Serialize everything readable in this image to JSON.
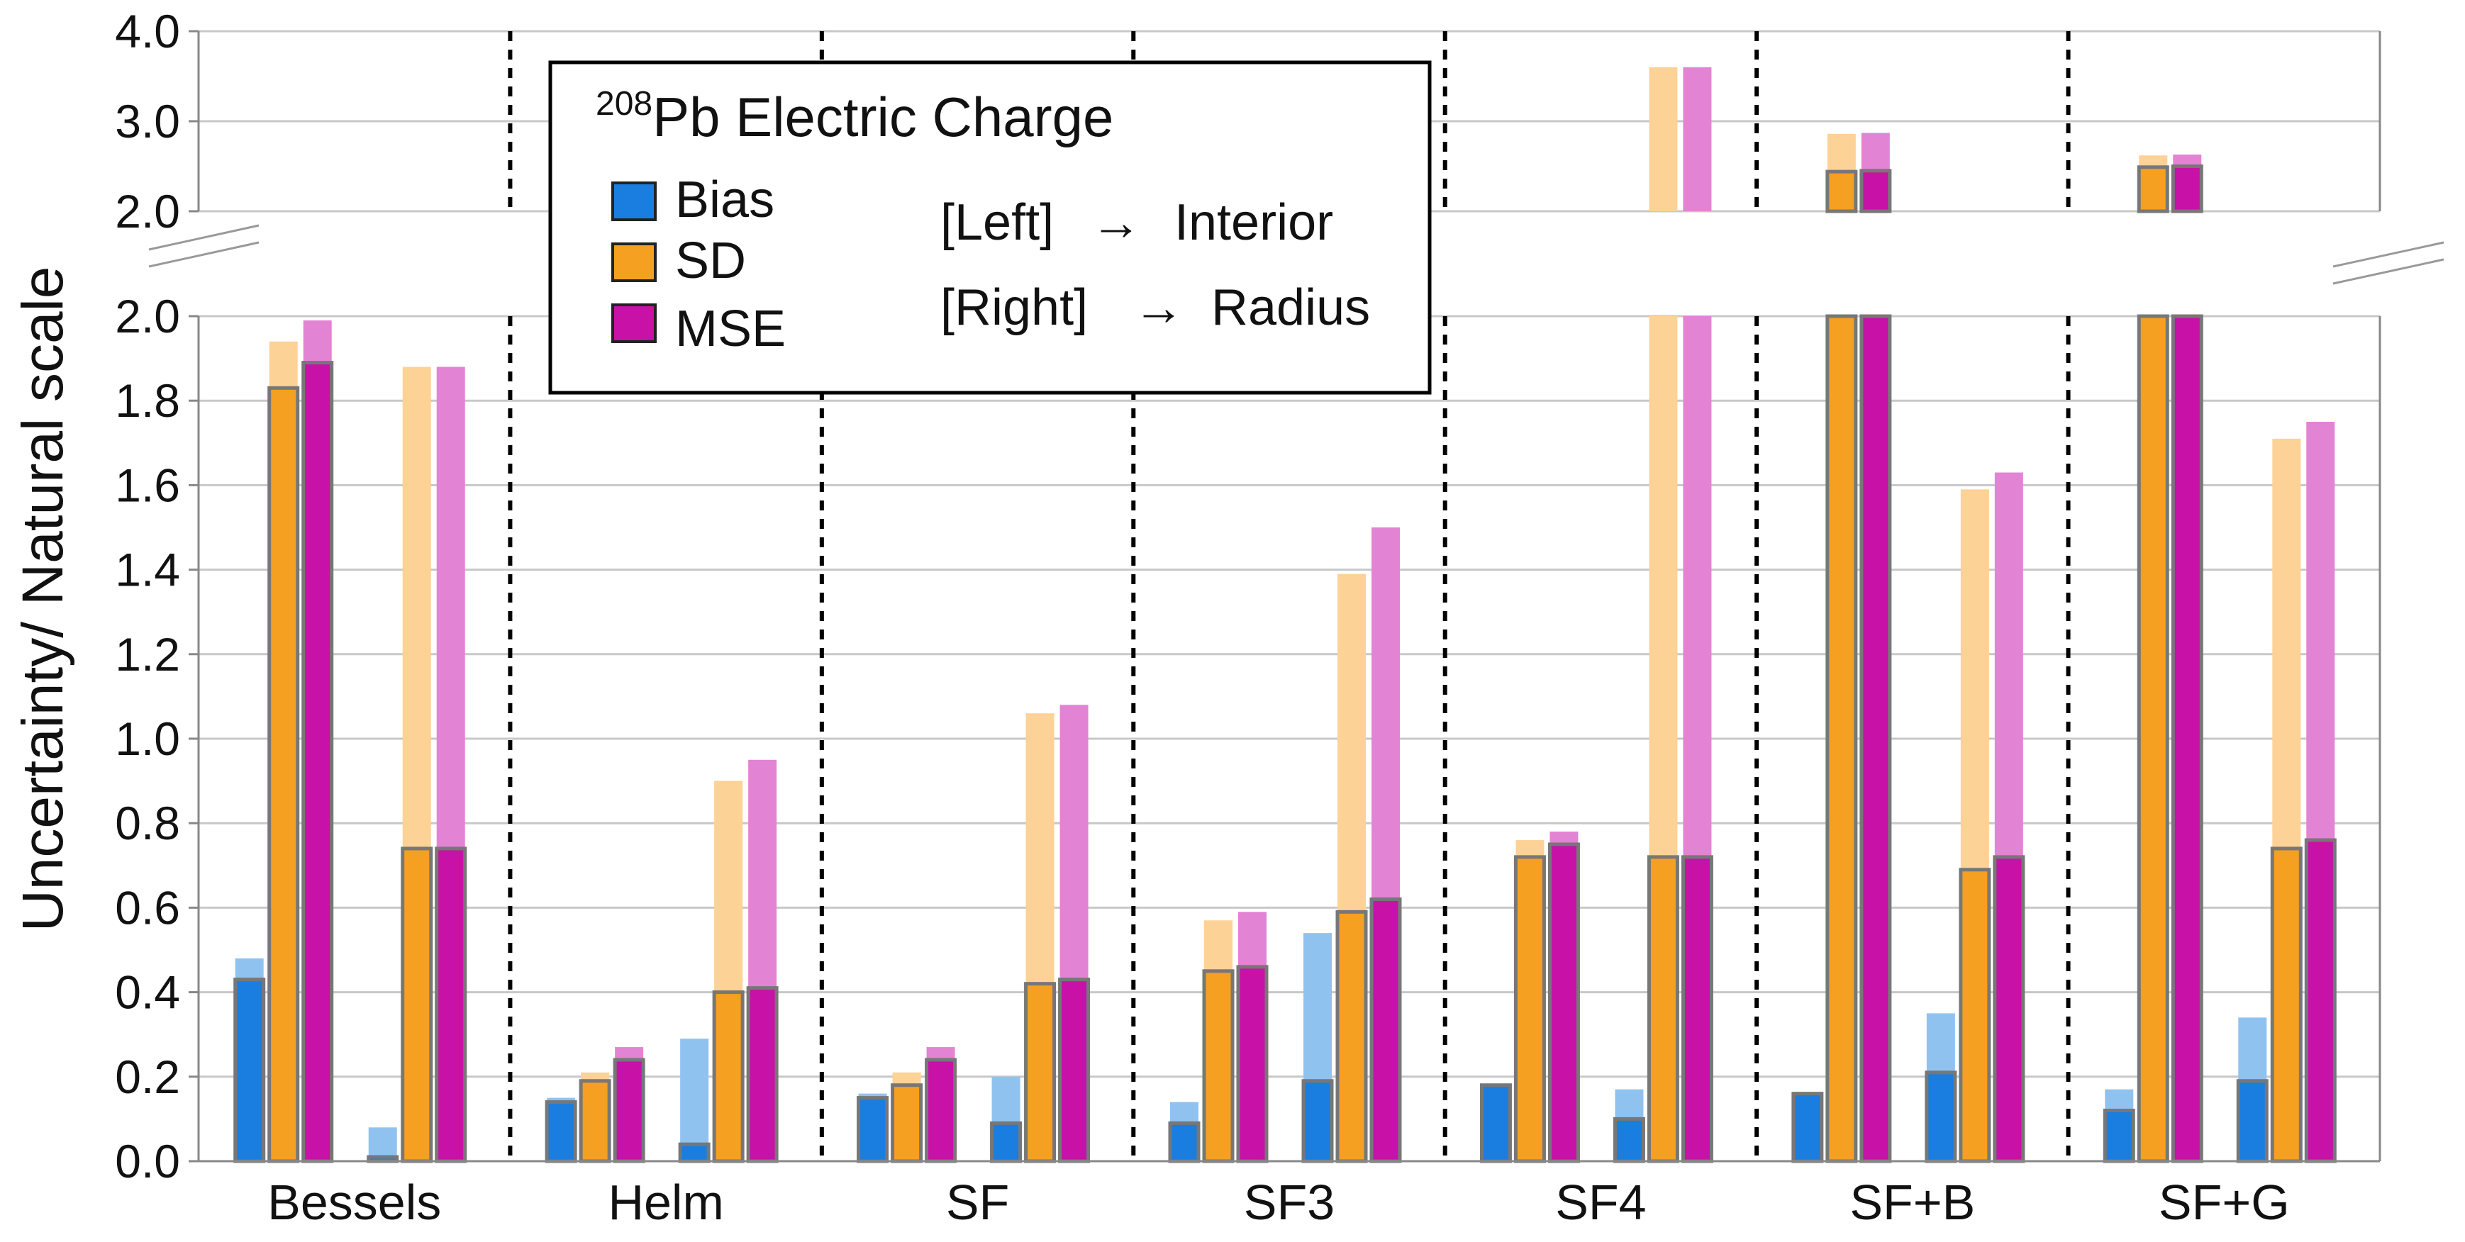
{
  "chart_data": {
    "type": "bar",
    "title_sup": "208",
    "title_main": "Pb Electric Charge",
    "ylabel": "Uncertainty/ Natural scale",
    "xlabel": "",
    "categories": [
      "Bessels",
      "Helm",
      "SF",
      "SF3",
      "SF4",
      "SF+B",
      "SF+G"
    ],
    "lower_axis": {
      "ylim": [
        0.0,
        2.0
      ],
      "ticks": [
        "0.0",
        "0.2",
        "0.4",
        "0.6",
        "0.8",
        "1.0",
        "1.2",
        "1.4",
        "1.6",
        "1.8",
        "2.0"
      ]
    },
    "upper_axis": {
      "ylim": [
        2.0,
        4.0
      ],
      "ticks": [
        "2.0",
        "3.0",
        "4.0"
      ]
    },
    "legend": {
      "entries": [
        "Bias",
        "SD",
        "MSE"
      ],
      "note_left": "[Left]",
      "note_left_target": "Interior",
      "note_right": "[Right]",
      "note_right_target": "Radius",
      "arrow": "→",
      "placement": "top-left"
    },
    "colors": {
      "Bias": "#1a7de0",
      "SD": "#f5a020",
      "MSE": "#c811a6",
      "Bias_light": "#90c2f0",
      "SD_light": "#fdd296",
      "MSE_light": "#e383d4",
      "outline": "#777777"
    },
    "series": [
      {
        "name": "Bias",
        "interior": [
          0.43,
          0.14,
          0.15,
          0.09,
          0.18,
          0.16,
          0.12
        ],
        "interior_overlay": [
          0.48,
          0.15,
          0.16,
          0.14,
          0.18,
          0.16,
          0.17
        ],
        "radius": [
          0.01,
          0.04,
          0.09,
          0.19,
          0.1,
          0.21,
          0.19
        ],
        "radius_overlay": [
          0.08,
          0.29,
          0.2,
          0.54,
          0.17,
          0.35,
          0.34
        ]
      },
      {
        "name": "SD",
        "interior": [
          1.83,
          0.19,
          0.18,
          0.45,
          0.72,
          2.44,
          2.49
        ],
        "interior_overlay": [
          1.94,
          0.21,
          0.21,
          0.57,
          0.76,
          2.86,
          2.62
        ],
        "radius": [
          0.74,
          0.4,
          0.42,
          0.59,
          0.72,
          0.69,
          0.74
        ],
        "radius_overlay": [
          1.88,
          0.9,
          1.06,
          1.39,
          3.6,
          1.59,
          1.71
        ]
      },
      {
        "name": "MSE",
        "interior": [
          1.89,
          0.24,
          0.24,
          0.46,
          0.75,
          2.45,
          2.5
        ],
        "interior_overlay": [
          1.99,
          0.27,
          0.27,
          0.59,
          0.78,
          2.87,
          2.63
        ],
        "radius": [
          0.74,
          0.41,
          0.43,
          0.62,
          0.72,
          0.72,
          0.76
        ],
        "radius_overlay": [
          1.88,
          0.95,
          1.08,
          1.5,
          3.6,
          1.63,
          1.75
        ]
      }
    ]
  }
}
